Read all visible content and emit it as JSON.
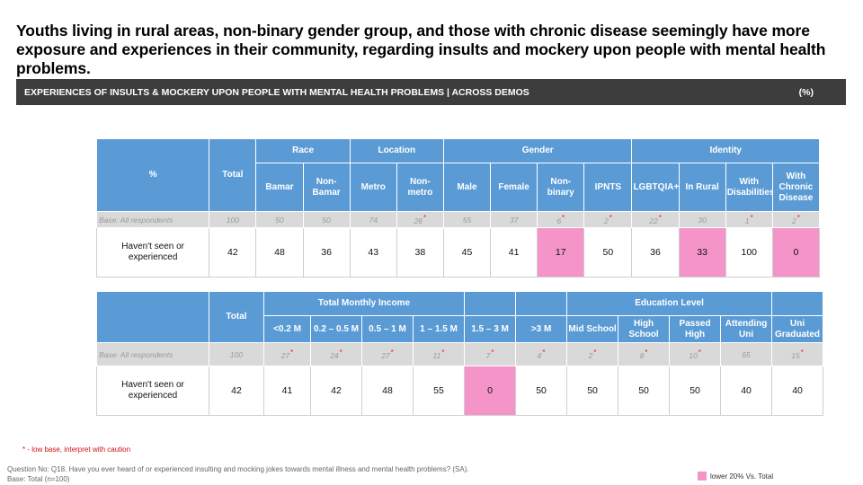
{
  "headline": "Youths living in rural areas, non-binary gender group, and those with chronic disease seemingly have more exposure and experiences in their community, regarding insults and mockery upon people with mental health problems.",
  "section_bar": {
    "title": "EXPERIENCES OF INSULTS & MOCKERY UPON PEOPLE WITH MENTAL HEALTH PROBLEMS | ACROSS DEMOS",
    "unit": "(%)"
  },
  "colors": {
    "header": "#5b9bd5",
    "base_row": "#d9d9d9",
    "low_highlight": "#f494c8",
    "title_bar": "#3d3d3d"
  },
  "chart_data": [
    {
      "type": "table",
      "corner_label": "%",
      "groups": [
        {
          "label": "",
          "columns": [
            {
              "label": "Total"
            }
          ]
        },
        {
          "label": "Race",
          "columns": [
            {
              "label": "Bamar"
            },
            {
              "label": "Non-Bamar"
            }
          ]
        },
        {
          "label": "Location",
          "columns": [
            {
              "label": "Metro"
            },
            {
              "label": "Non-metro"
            }
          ]
        },
        {
          "label": "Gender",
          "columns": [
            {
              "label": "Male"
            },
            {
              "label": "Female"
            },
            {
              "label": "Non-binary"
            },
            {
              "label": "IPNTS"
            }
          ]
        },
        {
          "label": "Identity",
          "columns": [
            {
              "label": "LGBTQIA+"
            },
            {
              "label": "In Rural"
            },
            {
              "label": "With Disabilities"
            },
            {
              "label": "With Chronic Disease"
            }
          ]
        }
      ],
      "base_label": "Base: All respondents",
      "base": [
        "100",
        "50",
        "50",
        "74",
        "26",
        "55",
        "37",
        "6",
        "2",
        "22",
        "30",
        "1",
        "2"
      ],
      "low_base": [
        false,
        false,
        false,
        false,
        true,
        false,
        false,
        true,
        true,
        true,
        false,
        true,
        true
      ],
      "rows": [
        {
          "label": "Haven't seen or experienced",
          "values": [
            "42",
            "48",
            "36",
            "43",
            "38",
            "45",
            "41",
            "17",
            "50",
            "36",
            "33",
            "100",
            "0"
          ],
          "lower_20pct": [
            false,
            false,
            false,
            false,
            false,
            false,
            false,
            true,
            false,
            false,
            true,
            false,
            true
          ]
        }
      ]
    },
    {
      "type": "table",
      "corner_label": "",
      "groups": [
        {
          "label": "",
          "columns": [
            {
              "label": "Total"
            }
          ]
        },
        {
          "label": "Total Monthly Income",
          "columns": [
            {
              "label": "<0.2 M"
            },
            {
              "label": "0.2 – 0.5 M"
            },
            {
              "label": "0.5 – 1 M"
            },
            {
              "label": "1 – 1.5 M"
            }
          ]
        },
        {
          "label": "",
          "columns": [
            {
              "label": "1.5 – 3 M"
            }
          ]
        },
        {
          "label": "",
          "columns": [
            {
              "label": ">3 M"
            }
          ]
        },
        {
          "label": "Education Level",
          "columns": [
            {
              "label": "Mid School"
            },
            {
              "label": "High School"
            },
            {
              "label": "Passed High"
            },
            {
              "label": "Attending Uni"
            }
          ]
        },
        {
          "label": "",
          "columns": [
            {
              "label": "Uni Graduated"
            }
          ]
        }
      ],
      "base_label": "Base: All respondents",
      "base": [
        "100",
        "27",
        "24",
        "27",
        "11",
        "7",
        "4",
        "2",
        "8",
        "10",
        "65",
        "15"
      ],
      "low_base": [
        false,
        true,
        true,
        true,
        true,
        true,
        true,
        true,
        true,
        true,
        false,
        true
      ],
      "rows": [
        {
          "label": "Haven't seen or experienced",
          "values": [
            "42",
            "41",
            "42",
            "48",
            "55",
            "0",
            "50",
            "50",
            "50",
            "50",
            "40",
            "40"
          ],
          "lower_20pct": [
            false,
            false,
            false,
            false,
            false,
            true,
            false,
            false,
            false,
            false,
            false,
            false
          ]
        }
      ]
    }
  ],
  "footnote": "* - low base, interpret with caution",
  "low_base_marker": "*",
  "question": "Question No: Q18. Have you ever heard of or experienced insulting and mocking jokes towards mental illness and mental health problems? (SA).",
  "base_note": "Base: Total (n=100)",
  "legend": {
    "label": "lower 20% Vs. Total"
  }
}
